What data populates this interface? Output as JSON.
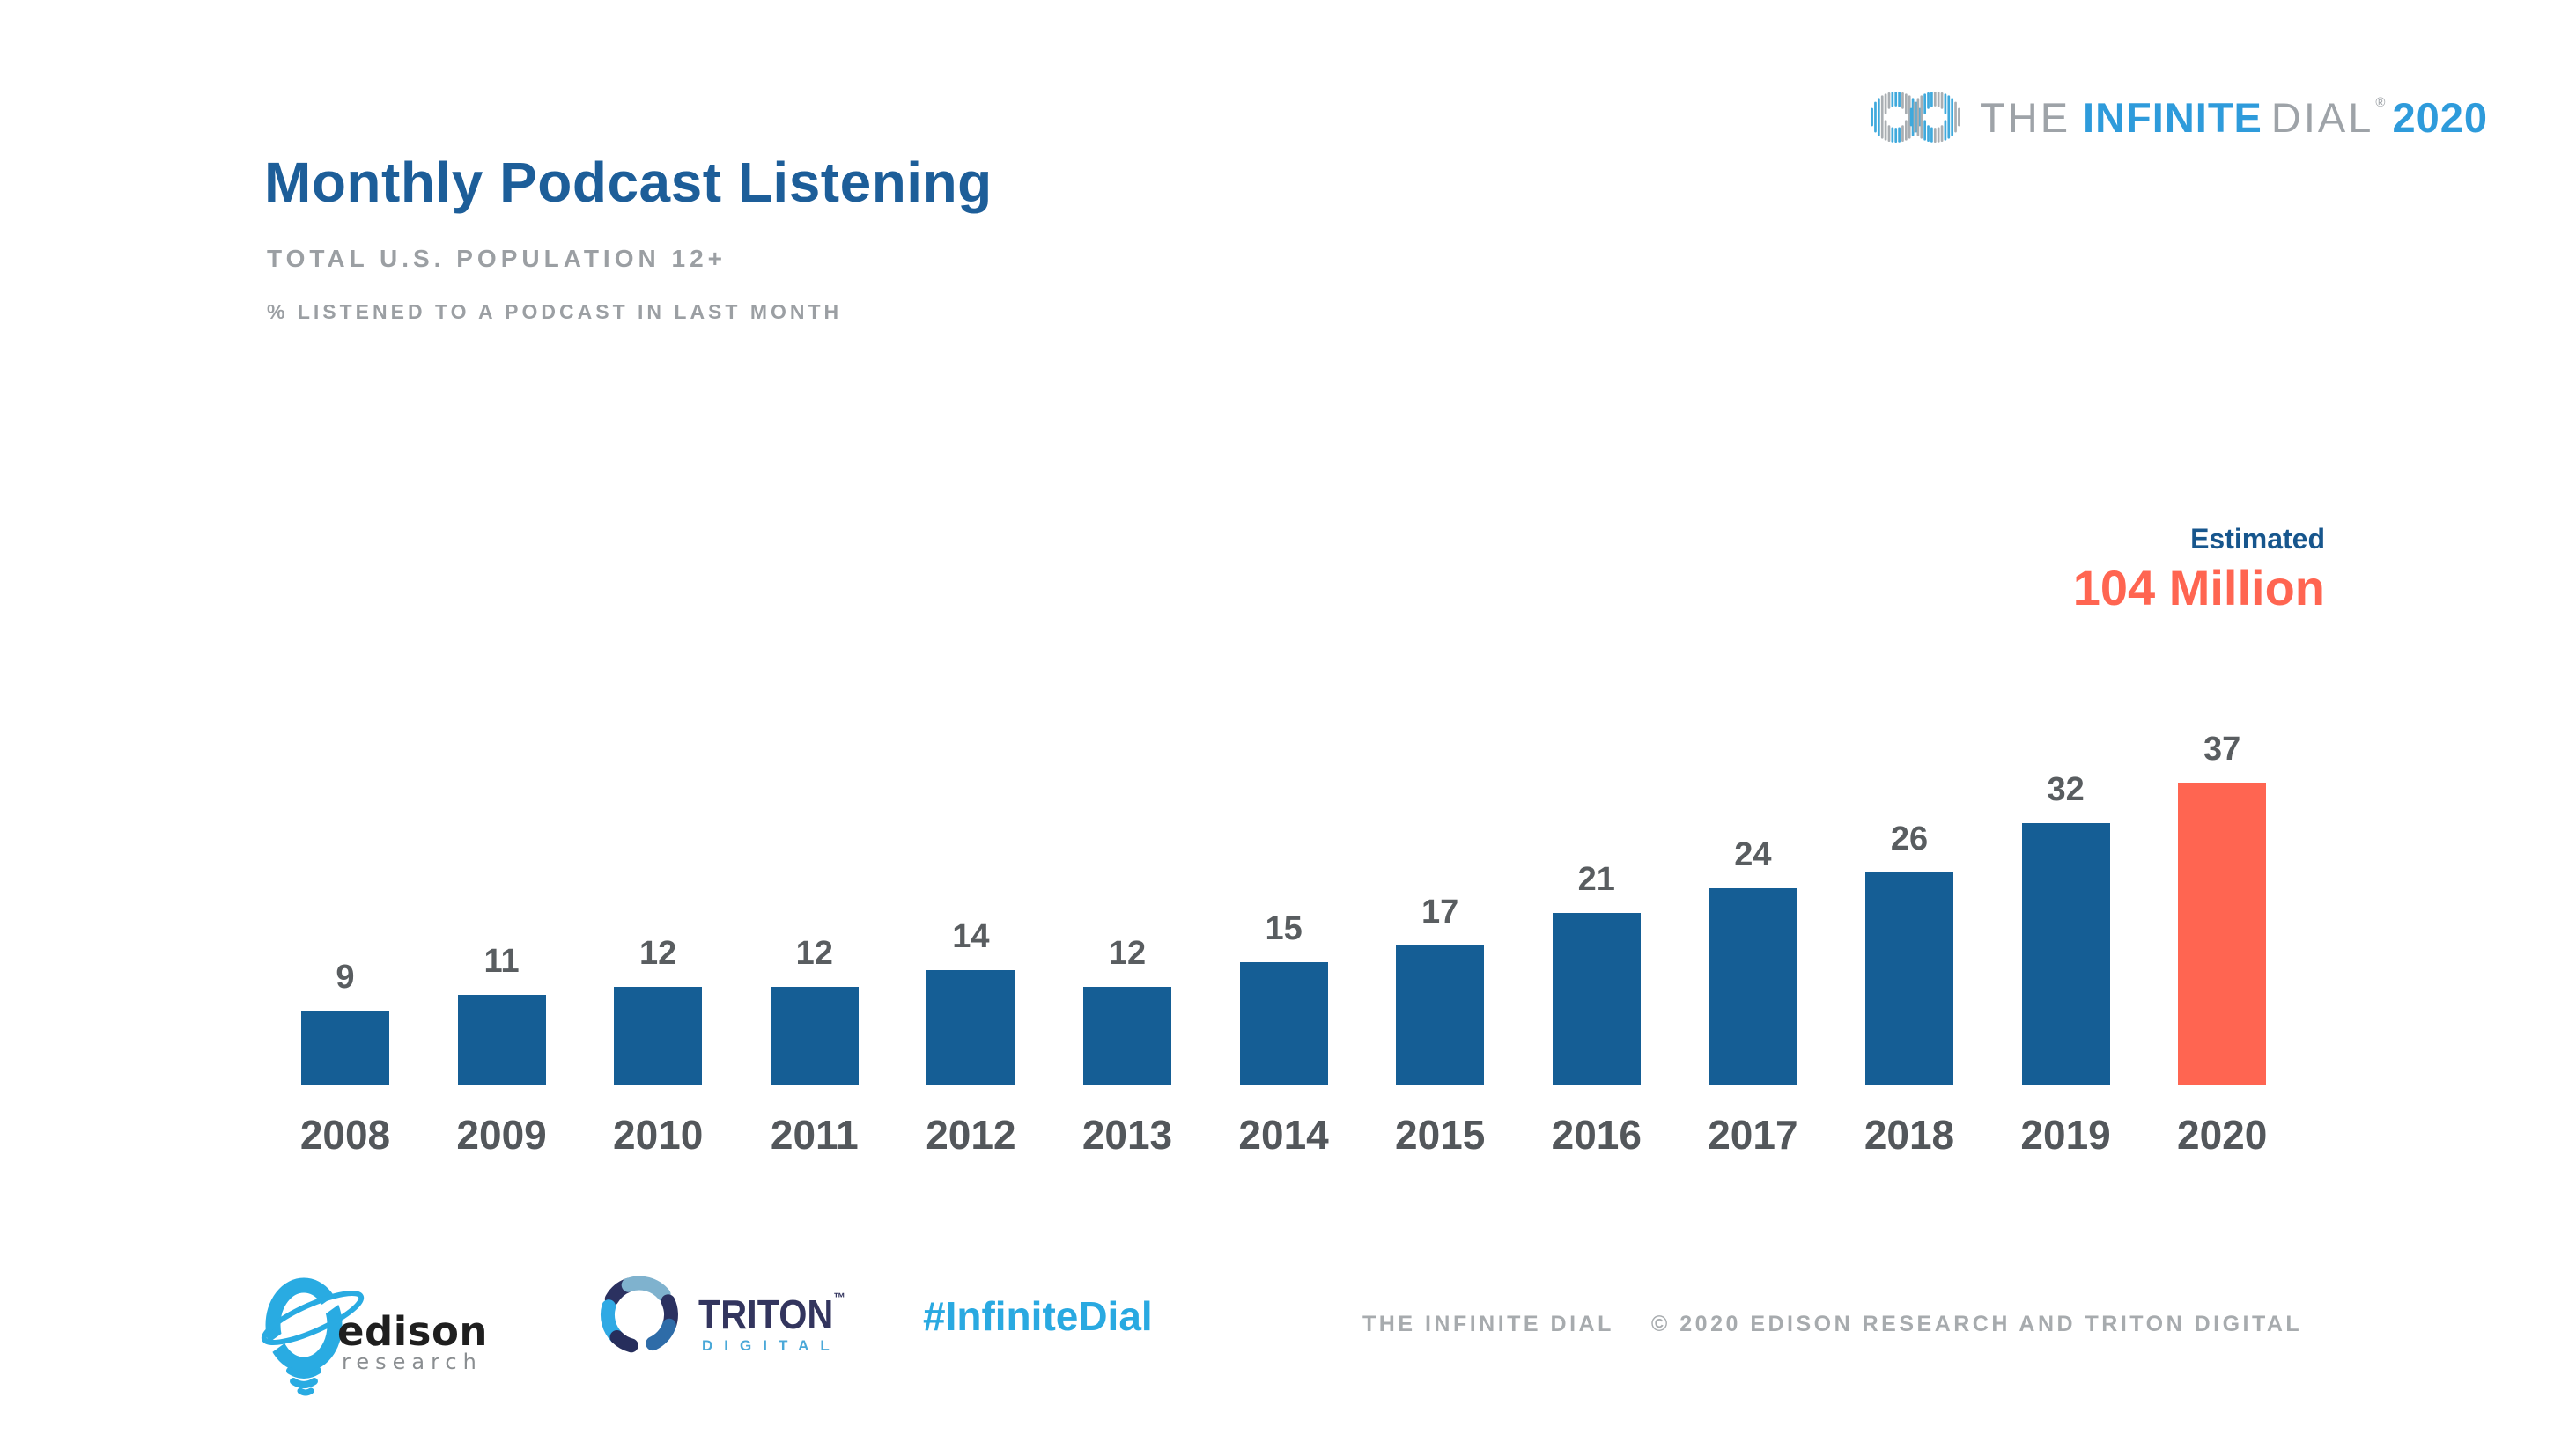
{
  "header": {
    "title": "Monthly Podcast Listening",
    "subtitle": "TOTAL U.S. POPULATION 12+",
    "measure_note": "% LISTENED TO A PODCAST IN LAST MONTH"
  },
  "brand_logo": {
    "word_the": "THE",
    "word_infinite": "INFINITE",
    "word_dial": "DIAL",
    "registered_mark": "®",
    "word_year": "2020"
  },
  "annotation": {
    "label": "Estimated",
    "value": "104 Million"
  },
  "chart_data": {
    "type": "bar",
    "title": "Monthly Podcast Listening",
    "subtitle": "Total U.S. Population 12+",
    "ylabel": "% listened to a podcast in last month",
    "categories": [
      "2008",
      "2009",
      "2010",
      "2011",
      "2012",
      "2013",
      "2014",
      "2015",
      "2016",
      "2017",
      "2018",
      "2019",
      "2020"
    ],
    "values": [
      9,
      11,
      12,
      12,
      14,
      12,
      15,
      17,
      21,
      24,
      26,
      32,
      37
    ],
    "ylim": [
      0,
      40
    ],
    "grid": false,
    "legend": false,
    "data_labels": true,
    "bar_color": "#155E95",
    "highlight_index": 12,
    "highlight_color": "#FF6551",
    "annotation": {
      "label": "Estimated",
      "value": "104 Million",
      "applies_to": "2020"
    }
  },
  "footer": {
    "edison_logo": {
      "name": "edison",
      "sub": "research"
    },
    "triton_logo": {
      "name": "TRITON",
      "trademark": "™",
      "sub": "DIGITAL"
    },
    "hashtag": "#InfiniteDial",
    "copyright_left": "THE INFINITE DIAL",
    "copyright_right": "© 2020 EDISON RESEARCH AND TRITON DIGITAL"
  },
  "icons": {
    "infinity_mark": "infinite-dial-infinity-icon",
    "edison_mark": "edison-research-bulb-icon",
    "triton_mark": "triton-digital-ring-icon"
  },
  "colors": {
    "title_blue": "#1D5E99",
    "subtitle_gray": "#9B9FA3",
    "bar_blue": "#155E95",
    "highlight_orange": "#FF6551",
    "estimated_blue": "#17568D",
    "value_label_gray": "#595D60",
    "year_label_gray": "#53575B",
    "footer_gray": "#A7ABAE",
    "hashtag_blue": "#29A9E1",
    "brand_blue": "#2E9BDB",
    "brand_gray": "#9EA3A8",
    "logo_stripe_blue": "#3FA9DC",
    "logo_stripe_gray": "#A9AEB2"
  }
}
